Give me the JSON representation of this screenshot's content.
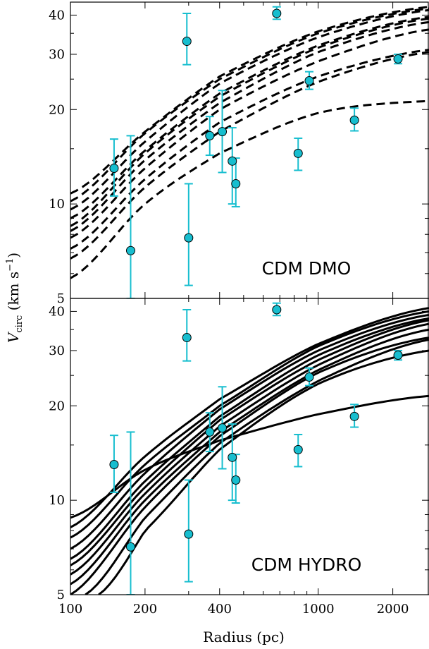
{
  "chart_data": [
    {
      "type": "line",
      "panel_label": "CDM DMO",
      "line_style": "dashed",
      "xscale": "log",
      "yscale": "log",
      "xlim": [
        100,
        2800
      ],
      "ylim": [
        5,
        44
      ],
      "x_ticks": [
        "100",
        "200",
        "400",
        "1000",
        "2000"
      ],
      "y_ticks": [
        "5",
        "10",
        "20",
        "30",
        "40"
      ],
      "curves": [
        {
          "x": [
            100,
            200,
            400,
            1000,
            2800
          ],
          "y": [
            10.8,
            17.0,
            25.5,
            35.5,
            42.5
          ]
        },
        {
          "x": [
            100,
            200,
            400,
            1000,
            2800
          ],
          "y": [
            10.2,
            16.8,
            25.0,
            35.0,
            42.0
          ]
        },
        {
          "x": [
            100,
            200,
            400,
            1000,
            2800
          ],
          "y": [
            9.6,
            15.8,
            24.2,
            34.0,
            41.5
          ]
        },
        {
          "x": [
            100,
            200,
            400,
            1000,
            2800
          ],
          "y": [
            9.0,
            14.8,
            22.5,
            32.0,
            39.5
          ]
        },
        {
          "x": [
            100,
            200,
            400,
            1000,
            2800
          ],
          "y": [
            8.5,
            14.5,
            22.0,
            31.5,
            39.0
          ]
        },
        {
          "x": [
            100,
            200,
            400,
            1000,
            2800
          ],
          "y": [
            8.2,
            13.8,
            21.0,
            30.5,
            38.0
          ]
        },
        {
          "x": [
            100,
            200,
            400,
            1000,
            2800
          ],
          "y": [
            7.8,
            13.0,
            20.0,
            28.5,
            36.0
          ]
        },
        {
          "x": [
            100,
            200,
            400,
            1000,
            2800
          ],
          "y": [
            7.2,
            12.0,
            18.2,
            25.5,
            31.0
          ]
        },
        {
          "x": [
            100,
            200,
            400,
            1000,
            2800
          ],
          "y": [
            6.7,
            11.3,
            17.0,
            24.5,
            30.5
          ]
        },
        {
          "x": [
            100,
            200,
            400,
            1000,
            2800
          ],
          "y": [
            5.8,
            10.0,
            14.5,
            19.5,
            21.3
          ]
        }
      ],
      "points": [
        {
          "x": 150,
          "y": 13.0,
          "ylo": 10.6,
          "yhi": 16.1
        },
        {
          "x": 175,
          "y": 7.1,
          "ylo": 5.0,
          "yhi": 16.5
        },
        {
          "x": 295,
          "y": 33.0,
          "ylo": 27.8,
          "yhi": 40.5
        },
        {
          "x": 300,
          "y": 7.8,
          "ylo": 5.5,
          "yhi": 11.6
        },
        {
          "x": 365,
          "y": 16.5,
          "ylo": 14.3,
          "yhi": 19.0
        },
        {
          "x": 410,
          "y": 17.0,
          "ylo": 12.6,
          "yhi": 23.0
        },
        {
          "x": 450,
          "y": 13.7,
          "ylo": 10.0,
          "yhi": 17.5
        },
        {
          "x": 465,
          "y": 11.6,
          "ylo": 9.8,
          "yhi": 14.0
        },
        {
          "x": 680,
          "y": 40.5,
          "ylo": 38.8,
          "yhi": 42.5
        },
        {
          "x": 830,
          "y": 14.5,
          "ylo": 12.8,
          "yhi": 16.2
        },
        {
          "x": 920,
          "y": 24.7,
          "ylo": 23.2,
          "yhi": 26.4
        },
        {
          "x": 1400,
          "y": 18.5,
          "ylo": 17.1,
          "yhi": 20.2
        },
        {
          "x": 2100,
          "y": 29.0,
          "ylo": 28.0,
          "yhi": 30.0
        }
      ]
    },
    {
      "type": "line",
      "panel_label": "CDM HYDRO",
      "line_style": "solid",
      "xscale": "log",
      "yscale": "log",
      "xlim": [
        100,
        2800
      ],
      "ylim": [
        5,
        44
      ],
      "x_ticks": [
        "100",
        "200",
        "400",
        "1000",
        "2000"
      ],
      "y_ticks": [
        "5",
        "10",
        "20",
        "30",
        "40"
      ],
      "curves": [
        {
          "x": [
            100,
            200,
            400,
            1000,
            2800
          ],
          "y": [
            8.2,
            13.8,
            21.0,
            31.5,
            41.0
          ]
        },
        {
          "x": [
            100,
            200,
            400,
            1000,
            2800
          ],
          "y": [
            7.6,
            13.0,
            20.0,
            31.0,
            40.0
          ]
        },
        {
          "x": [
            100,
            200,
            400,
            1000,
            2800
          ],
          "y": [
            7.0,
            12.2,
            19.5,
            30.0,
            39.0
          ]
        },
        {
          "x": [
            100,
            200,
            400,
            1000,
            2800
          ],
          "y": [
            6.5,
            11.5,
            18.5,
            29.0,
            38.0
          ]
        },
        {
          "x": [
            100,
            200,
            400,
            1000,
            2800
          ],
          "y": [
            6.2,
            11.0,
            18.0,
            28.0,
            37.5
          ]
        },
        {
          "x": [
            100,
            200,
            400,
            1000,
            2800
          ],
          "y": [
            5.8,
            10.5,
            17.2,
            27.0,
            36.5
          ]
        },
        {
          "x": [
            100,
            200,
            400,
            1000,
            2800
          ],
          "y": [
            5.4,
            10.0,
            16.5,
            26.0,
            35.0
          ]
        },
        {
          "x": [
            100,
            200,
            400,
            1000,
            2800
          ],
          "y": [
            5.0,
            9.5,
            16.0,
            25.5,
            33.0
          ]
        },
        {
          "x": [
            115,
            200,
            400,
            1000,
            2800
          ],
          "y": [
            5.0,
            8.8,
            15.2,
            24.0,
            32.5
          ]
        },
        {
          "x": [
            130,
            200,
            400,
            1000,
            2800
          ],
          "y": [
            5.0,
            8.0,
            14.5,
            23.5,
            30.0
          ]
        },
        {
          "x": [
            100,
            200,
            400,
            1000,
            2800
          ],
          "y": [
            8.8,
            12.5,
            15.5,
            18.8,
            21.5
          ]
        }
      ],
      "points": [
        {
          "x": 150,
          "y": 13.0,
          "ylo": 10.6,
          "yhi": 16.1
        },
        {
          "x": 175,
          "y": 7.1,
          "ylo": 5.0,
          "yhi": 16.5
        },
        {
          "x": 295,
          "y": 33.0,
          "ylo": 27.8,
          "yhi": 40.5
        },
        {
          "x": 300,
          "y": 7.8,
          "ylo": 5.5,
          "yhi": 11.6
        },
        {
          "x": 365,
          "y": 16.5,
          "ylo": 14.3,
          "yhi": 19.0
        },
        {
          "x": 410,
          "y": 17.0,
          "ylo": 12.6,
          "yhi": 23.0
        },
        {
          "x": 450,
          "y": 13.7,
          "ylo": 10.0,
          "yhi": 17.5
        },
        {
          "x": 465,
          "y": 11.6,
          "ylo": 9.8,
          "yhi": 14.0
        },
        {
          "x": 680,
          "y": 40.5,
          "ylo": 38.8,
          "yhi": 42.5
        },
        {
          "x": 830,
          "y": 14.5,
          "ylo": 12.8,
          "yhi": 16.2
        },
        {
          "x": 920,
          "y": 24.7,
          "ylo": 23.2,
          "yhi": 26.4
        },
        {
          "x": 1400,
          "y": 18.5,
          "ylo": 17.1,
          "yhi": 20.2
        },
        {
          "x": 2100,
          "y": 29.0,
          "ylo": 28.0,
          "yhi": 30.0
        }
      ]
    }
  ],
  "shared": {
    "xlabel": "Radius (pc)",
    "ylabel_main": "V",
    "ylabel_sub": "circ",
    "ylabel_unit": "(km s",
    "ylabel_unit_exp": "−1",
    "ylabel_close": ")"
  },
  "colors": {
    "points": "#17becf",
    "lines": "#000000"
  }
}
